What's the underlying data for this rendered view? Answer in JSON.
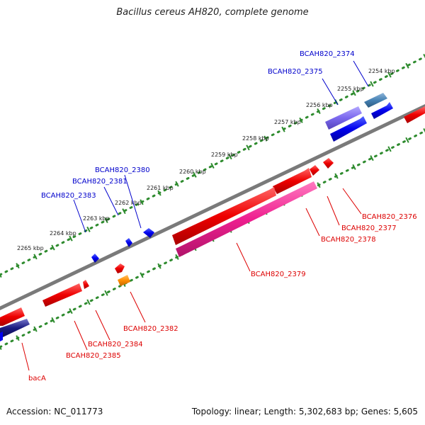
{
  "header": {
    "title": "Bacillus cereus AH820, complete genome"
  },
  "footer": {
    "accession": "Accession: NC_011773",
    "summary": "Topology: linear; Length: 5,302,683 bp; Genes: 5,605"
  },
  "colors": {
    "backbone": "#7a7a7a",
    "ruler_dots": "#2e8b2e",
    "label_top": "#0000cc",
    "label_bottom": "#dd0000",
    "gene_red": "#ee0000",
    "gene_blue": "#0000ee",
    "gene_pink": "#ee1f8f",
    "gene_orange": "#ff8c00",
    "gene_purple": "#7b68ee",
    "gene_steelblue": "#4682b4",
    "gene_navy": "#1a1a80"
  },
  "ruler_labels": [
    "2254 kbp",
    "2255 kbp",
    "2256 kbp",
    "2257 kbp",
    "2258 kbp",
    "2259 kbp",
    "2260 kbp",
    "2261 kbp",
    "2262 kbp",
    "2263 kbp",
    "2264 kbp",
    "2265 kbp"
  ],
  "gene_labels_top": [
    "BCAH820_2374",
    "BCAH820_2375",
    "BCAH820_2380",
    "BCAH820_2381",
    "BCAH820_2383"
  ],
  "gene_labels_bottom": [
    "BCAH820_2376",
    "BCAH820_2377",
    "BCAH820_2378",
    "BCAH820_2379",
    "BCAH820_2382",
    "BCAH820_2384",
    "BCAH820_2385",
    "bacA"
  ]
}
